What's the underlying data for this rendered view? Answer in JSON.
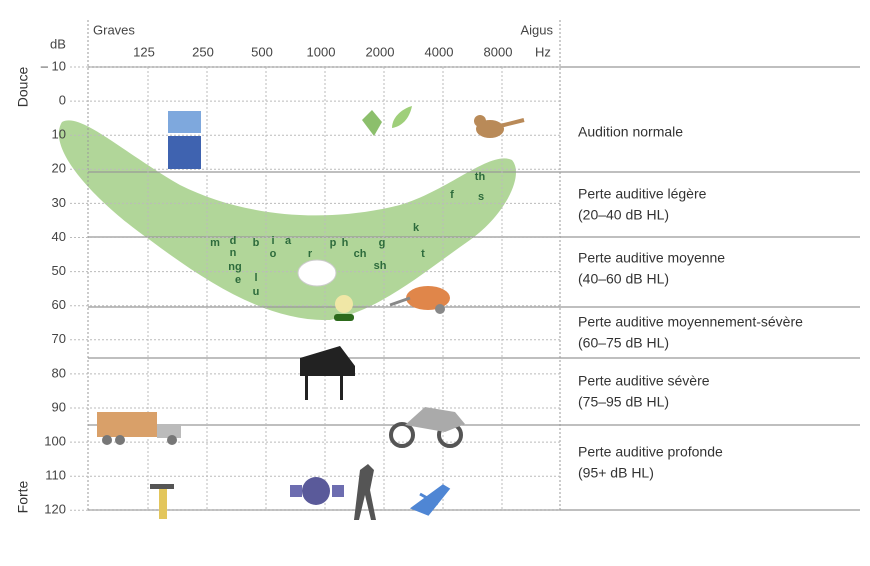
{
  "header": {
    "low": "Graves",
    "high": "Aigus",
    "top": "Douce",
    "bottom": "Forte"
  },
  "db_axis": {
    "unit": "dB",
    "ticks": [
      {
        "value": -10,
        "label": "– 10"
      },
      0,
      10,
      20,
      30,
      40,
      50,
      60,
      70,
      80,
      90,
      100,
      110,
      120
    ]
  },
  "frequency_axis": {
    "unit": "Hz",
    "ticks": [
      125,
      250,
      500,
      1000,
      2000,
      4000,
      8000
    ]
  },
  "zones": [
    {
      "label": "Audition normale"
    },
    {
      "label": "Perte auditive légère",
      "range": "(20–40 dB HL)"
    },
    {
      "label": "Perte auditive moyenne",
      "range": "(40–60 dB HL)"
    },
    {
      "label": "Perte auditive moyennement-sévère",
      "range": "(60–75 dB HL)"
    },
    {
      "label": "Perte auditive sévère",
      "range": "(75–95 dB HL)"
    },
    {
      "label": "Perte auditive profonde",
      "range": "(95+ dB HL)"
    }
  ],
  "phonemes": [
    "m",
    "d",
    "n",
    "ng",
    "e",
    "b",
    "l",
    "u",
    "i",
    "o",
    "a",
    "r",
    "p",
    "h",
    "ch",
    "g",
    "sh",
    "k",
    "t",
    "f",
    "th",
    "s"
  ]
}
